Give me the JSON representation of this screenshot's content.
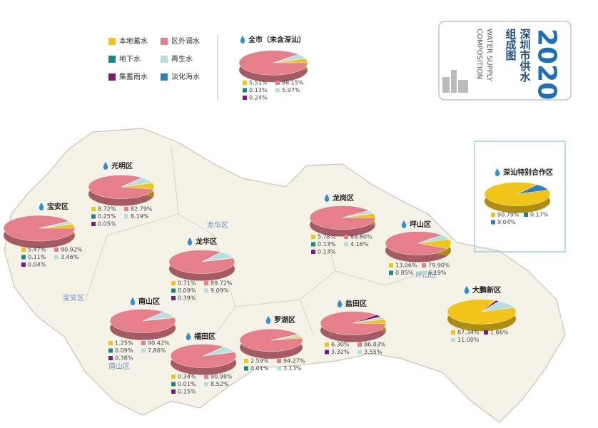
{
  "title": {
    "year": "2020",
    "cn": [
      "深圳市供水",
      "组成图"
    ],
    "en": [
      "WATER SUPPLY",
      "COMPOSITION"
    ]
  },
  "legend": [
    {
      "name": "本地蓄水",
      "color": "#f0c419"
    },
    {
      "name": "区外调水",
      "color": "#e57f89"
    },
    {
      "name": "地下水",
      "color": "#17877f"
    },
    {
      "name": "再生水",
      "color": "#b4e0e2"
    },
    {
      "name": "集蓄雨水",
      "color": "#7b1a7c"
    },
    {
      "name": "淡化海水",
      "color": "#2f7fc1"
    }
  ],
  "map_labels": [
    "龙华区",
    "宝安区",
    "南山区",
    "坪山区"
  ],
  "chart_data": [
    {
      "type": "pie",
      "title": "全市（未含深汕）",
      "values": [
        5.51,
        88.15,
        0.13,
        5.97,
        0.24
      ],
      "value_labels": [
        "5.51%",
        "88.15%",
        "0.13%",
        "5.97%",
        "0.24%"
      ],
      "colors": [
        "#f0c419",
        "#e57f89",
        "#17877f",
        "#b4e0e2",
        "#7b1a7c"
      ]
    },
    {
      "type": "pie",
      "title": "光明区",
      "values": [
        8.72,
        82.79,
        0.25,
        8.19,
        0.05
      ],
      "value_labels": [
        "8.72%",
        "82.79%",
        "0.25%",
        "8.19%",
        "0.05%"
      ],
      "colors": [
        "#f0c419",
        "#e57f89",
        "#17877f",
        "#b4e0e2",
        "#7b1a7c"
      ]
    },
    {
      "type": "pie",
      "title": "宝安区",
      "values": [
        5.47,
        90.92,
        0.11,
        3.46,
        0.04
      ],
      "value_labels": [
        "5.47%",
        "90.92%",
        "0.11%",
        "3.46%",
        "0.04%"
      ],
      "colors": [
        "#f0c419",
        "#e57f89",
        "#17877f",
        "#b4e0e2",
        "#7b1a7c"
      ]
    },
    {
      "type": "pie",
      "title": "龙华区",
      "values": [
        0.71,
        89.72,
        0.09,
        9.09,
        0.39
      ],
      "value_labels": [
        "0.71%",
        "89.72%",
        "0.09%",
        "9.09%",
        "0.39%"
      ],
      "colors": [
        "#f0c419",
        "#e57f89",
        "#17877f",
        "#b4e0e2",
        "#7b1a7c"
      ]
    },
    {
      "type": "pie",
      "title": "龙岗区",
      "values": [
        5.78,
        89.8,
        0.13,
        4.16,
        0.13
      ],
      "value_labels": [
        "5.78%",
        "89.80%",
        "0.13%",
        "4.16%",
        "0.13%"
      ],
      "colors": [
        "#f0c419",
        "#e57f89",
        "#17877f",
        "#b4e0e2",
        "#7b1a7c"
      ]
    },
    {
      "type": "pie",
      "title": "坪山区",
      "values": [
        13.06,
        79.9,
        0.85,
        6.19
      ],
      "value_labels": [
        "13.06%",
        "79.90%",
        "0.85%",
        "6.19%"
      ],
      "colors": [
        "#f0c419",
        "#e57f89",
        "#17877f",
        "#b4e0e2"
      ]
    },
    {
      "type": "pie",
      "title": "南山区",
      "values": [
        1.25,
        90.42,
        0.09,
        7.86,
        0.38
      ],
      "value_labels": [
        "1.25%",
        "90.42%",
        "0.09%",
        "7.86%",
        "0.38%"
      ],
      "colors": [
        "#f0c419",
        "#e57f89",
        "#17877f",
        "#b4e0e2",
        "#7b1a7c"
      ]
    },
    {
      "type": "pie",
      "title": "福田区",
      "values": [
        0.34,
        90.98,
        0.01,
        8.52,
        0.15
      ],
      "value_labels": [
        "0.34%",
        "90.98%",
        "0.01%",
        "8.52%",
        "0.15%"
      ],
      "colors": [
        "#f0c419",
        "#e57f89",
        "#17877f",
        "#b4e0e2",
        "#7b1a7c"
      ]
    },
    {
      "type": "pie",
      "title": "罗湖区",
      "values": [
        2.59,
        94.27,
        0.01,
        3.13
      ],
      "value_labels": [
        "2.59%",
        "94.27%",
        "0.01%",
        "3.13%"
      ],
      "colors": [
        "#f0c419",
        "#e57f89",
        "#17877f",
        "#b4e0e2"
      ]
    },
    {
      "type": "pie",
      "title": "盐田区",
      "values": [
        6.3,
        86.83,
        3.32,
        3.55
      ],
      "value_labels": [
        "6.30%",
        "86.83%",
        "3.32%",
        "3.55%"
      ],
      "colors": [
        "#f0c419",
        "#e57f89",
        "#7b1a7c",
        "#b4e0e2"
      ]
    },
    {
      "type": "pie",
      "title": "大鹏新区",
      "values": [
        87.34,
        1.66,
        11.0
      ],
      "value_labels": [
        "87.34%",
        "1.66%",
        "11.00%"
      ],
      "colors": [
        "#f0c419",
        "#7b1a7c",
        "#b4e0e2"
      ]
    },
    {
      "type": "pie",
      "title": "深汕特别合作区",
      "values": [
        90.79,
        0.17,
        9.04
      ],
      "value_labels": [
        "90.79%",
        "0.17%",
        "9.04%"
      ],
      "colors": [
        "#f0c419",
        "#17877f",
        "#2f7fc1"
      ]
    }
  ]
}
